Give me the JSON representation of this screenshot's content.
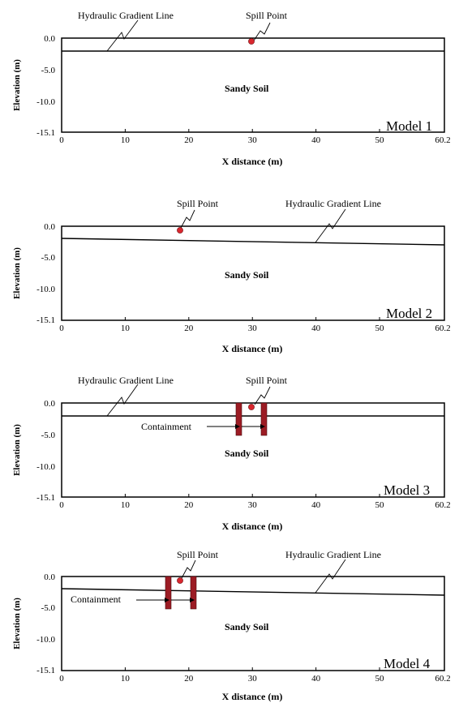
{
  "axes": {
    "y_label": "Elevation (m)",
    "x_label": "X distance (m)",
    "y_ticks": [
      "0.0",
      "-5.0",
      "-10.0",
      "-15.1"
    ],
    "x_ticks": [
      "0",
      "10",
      "20",
      "30",
      "40",
      "50",
      "60.2"
    ],
    "x_tick_values": [
      0,
      10,
      20,
      30,
      40,
      50,
      60.2
    ],
    "y_tick_values": [
      0,
      -5,
      -10,
      -15.1
    ],
    "x_range": [
      0,
      60.2
    ],
    "y_range": [
      -15.1,
      0
    ]
  },
  "labels": {
    "soil": "Sandy Soil",
    "spill_point": "Spill Point",
    "hgl": "Hydraulic Gradient Line",
    "containment": "Containment"
  },
  "colors": {
    "wall": "#9c1c24",
    "spill": "#d9272e"
  },
  "models": [
    {
      "name": "Model 1",
      "spill_x": 30,
      "spill_y": -0.5,
      "hgl_y_start": -2,
      "hgl_y_end": -2,
      "containment": false
    },
    {
      "name": "Model 2",
      "spill_x": 18.7,
      "spill_y": -0.5,
      "hgl_y_start": -1.8,
      "hgl_y_end": -2.9,
      "containment": false
    },
    {
      "name": "Model 3",
      "spill_x": 30,
      "spill_y": -0.5,
      "hgl_y_start": -2,
      "hgl_y_end": -2,
      "containment": true,
      "walls_x": [
        28,
        32
      ],
      "wall_bottom": -5.5
    },
    {
      "name": "Model 4",
      "spill_x": 18.7,
      "spill_y": -0.5,
      "hgl_y_start": -1.8,
      "hgl_y_end": -2.9,
      "containment": true,
      "walls_x": [
        16.8,
        21
      ],
      "wall_bottom": -5.5
    }
  ]
}
